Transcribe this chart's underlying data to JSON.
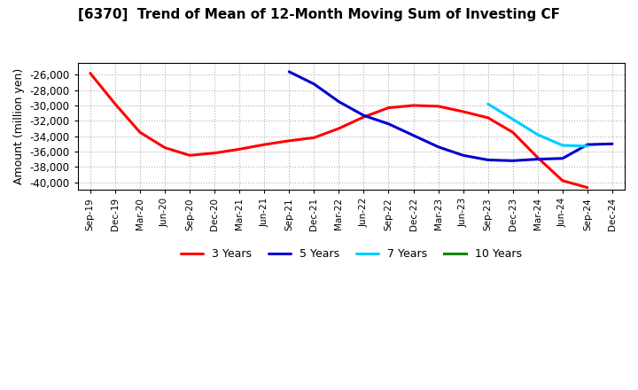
{
  "title": "[6370]  Trend of Mean of 12-Month Moving Sum of Investing CF",
  "ylabel": "Amount (million yen)",
  "background_color": "#ffffff",
  "grid_color": "#b0b0b0",
  "ylim": [
    -41000,
    -24500
  ],
  "yticks": [
    -40000,
    -38000,
    -36000,
    -34000,
    -32000,
    -30000,
    -28000,
    -26000
  ],
  "x_labels": [
    "Sep-19",
    "Dec-19",
    "Mar-20",
    "Jun-20",
    "Sep-20",
    "Dec-20",
    "Mar-21",
    "Jun-21",
    "Sep-21",
    "Dec-21",
    "Mar-22",
    "Jun-22",
    "Sep-22",
    "Dec-22",
    "Mar-23",
    "Jun-23",
    "Sep-23",
    "Dec-23",
    "Mar-24",
    "Jun-24",
    "Sep-24",
    "Dec-24"
  ],
  "series": {
    "3 Years": {
      "color": "#ff0000",
      "x_indices": [
        0,
        1,
        2,
        3,
        4,
        5,
        6,
        7,
        8,
        9,
        10,
        11,
        12,
        13,
        14,
        15,
        16,
        17,
        18,
        19,
        20
      ],
      "y": [
        -25800,
        -29800,
        -33500,
        -35500,
        -36500,
        -36200,
        -35700,
        -35100,
        -34600,
        -34200,
        -33000,
        -31500,
        -30300,
        -30000,
        -30100,
        -30800,
        -31600,
        -33500,
        -36800,
        -39800,
        -40700
      ]
    },
    "5 Years": {
      "color": "#0000cc",
      "x_indices": [
        8,
        9,
        10,
        11,
        12,
        13,
        14,
        15,
        16,
        17,
        18,
        19,
        20,
        21
      ],
      "y": [
        -25600,
        -27200,
        -29500,
        -31300,
        -32400,
        -33900,
        -35400,
        -36500,
        -37100,
        -37200,
        -37000,
        -36900,
        -35100,
        -35000
      ]
    },
    "7 Years": {
      "color": "#00ccff",
      "x_indices": [
        16,
        17,
        18,
        19,
        20
      ],
      "y": [
        -29800,
        -31800,
        -33800,
        -35200,
        -35300
      ]
    },
    "10 Years": {
      "color": "#008800",
      "x_indices": [],
      "y": []
    }
  }
}
